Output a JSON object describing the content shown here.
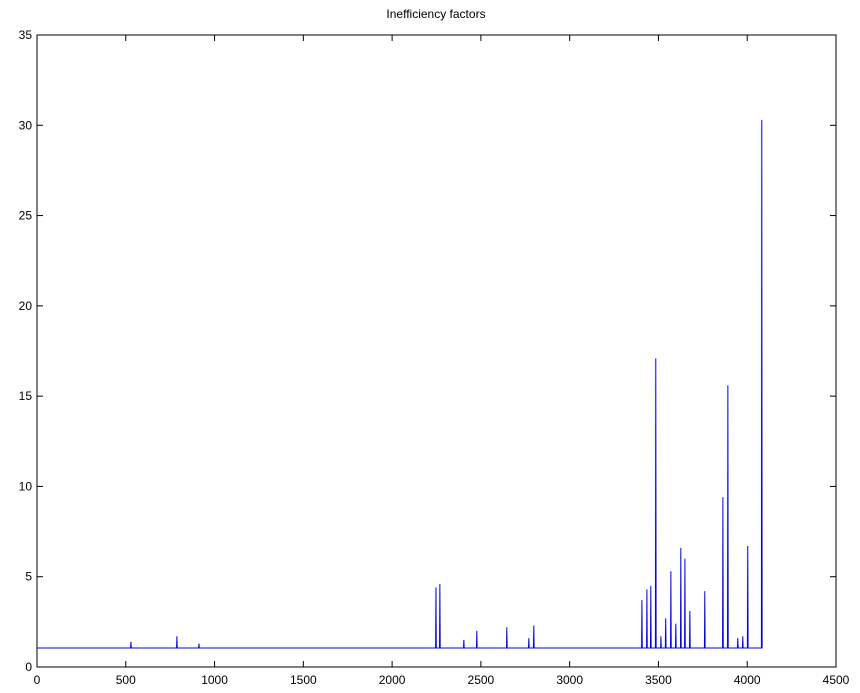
{
  "chart_data": {
    "type": "line",
    "title": "Inefficiency factors",
    "x": [
      1,
      527,
      529,
      531,
      786,
      788,
      790,
      910,
      912,
      914,
      2245,
      2247,
      2249,
      2267,
      2269,
      2271,
      2402,
      2404,
      2406,
      2475,
      2477,
      2479,
      2644,
      2646,
      2648,
      2768,
      2770,
      2772,
      2796,
      2798,
      2800,
      3405,
      3407,
      3409,
      3433,
      3435,
      3437,
      3455,
      3457,
      3459,
      3483,
      3485,
      3487,
      3512,
      3514,
      3516,
      3539,
      3541,
      3543,
      3568,
      3570,
      3572,
      3596,
      3598,
      3600,
      3624,
      3626,
      3628,
      3647,
      3649,
      3651,
      3675,
      3677,
      3679,
      3759,
      3761,
      3763,
      3861,
      3863,
      3865,
      3889,
      3891,
      3893,
      3945,
      3947,
      3949,
      3973,
      3975,
      3977,
      4001,
      4003,
      4005,
      4080,
      4082,
      4084,
      4086
    ],
    "series": [
      {
        "color": "#0000ff",
        "values": [
          1.05,
          1.05,
          1.4,
          1.05,
          1.05,
          1.7,
          1.05,
          1.05,
          1.3,
          1.05,
          1.05,
          4.4,
          1.05,
          1.05,
          4.6,
          1.05,
          1.05,
          1.5,
          1.05,
          1.05,
          2.0,
          1.05,
          1.05,
          2.2,
          1.05,
          1.05,
          1.6,
          1.05,
          1.05,
          2.3,
          1.05,
          1.05,
          3.7,
          1.05,
          1.05,
          4.3,
          1.05,
          1.05,
          4.5,
          1.05,
          1.05,
          17.1,
          1.05,
          1.05,
          1.7,
          1.05,
          1.05,
          2.7,
          1.05,
          1.05,
          5.3,
          1.05,
          1.05,
          2.4,
          1.05,
          1.05,
          6.6,
          1.05,
          1.05,
          6.0,
          1.05,
          1.05,
          3.1,
          1.05,
          1.05,
          4.2,
          1.05,
          1.05,
          9.4,
          1.05,
          1.05,
          15.6,
          1.05,
          1.05,
          1.6,
          1.05,
          1.05,
          1.7,
          1.05,
          1.05,
          6.7,
          1.05,
          1.05,
          30.3,
          1.05,
          1.05
        ]
      }
    ],
    "xlim": [
      0,
      4500
    ],
    "xticks": [
      0,
      500,
      1000,
      1500,
      2000,
      2500,
      3000,
      3500,
      4000,
      4500
    ],
    "ylim": [
      0,
      35
    ],
    "yticks": [
      0,
      5,
      10,
      15,
      20,
      25,
      30,
      35
    ]
  }
}
